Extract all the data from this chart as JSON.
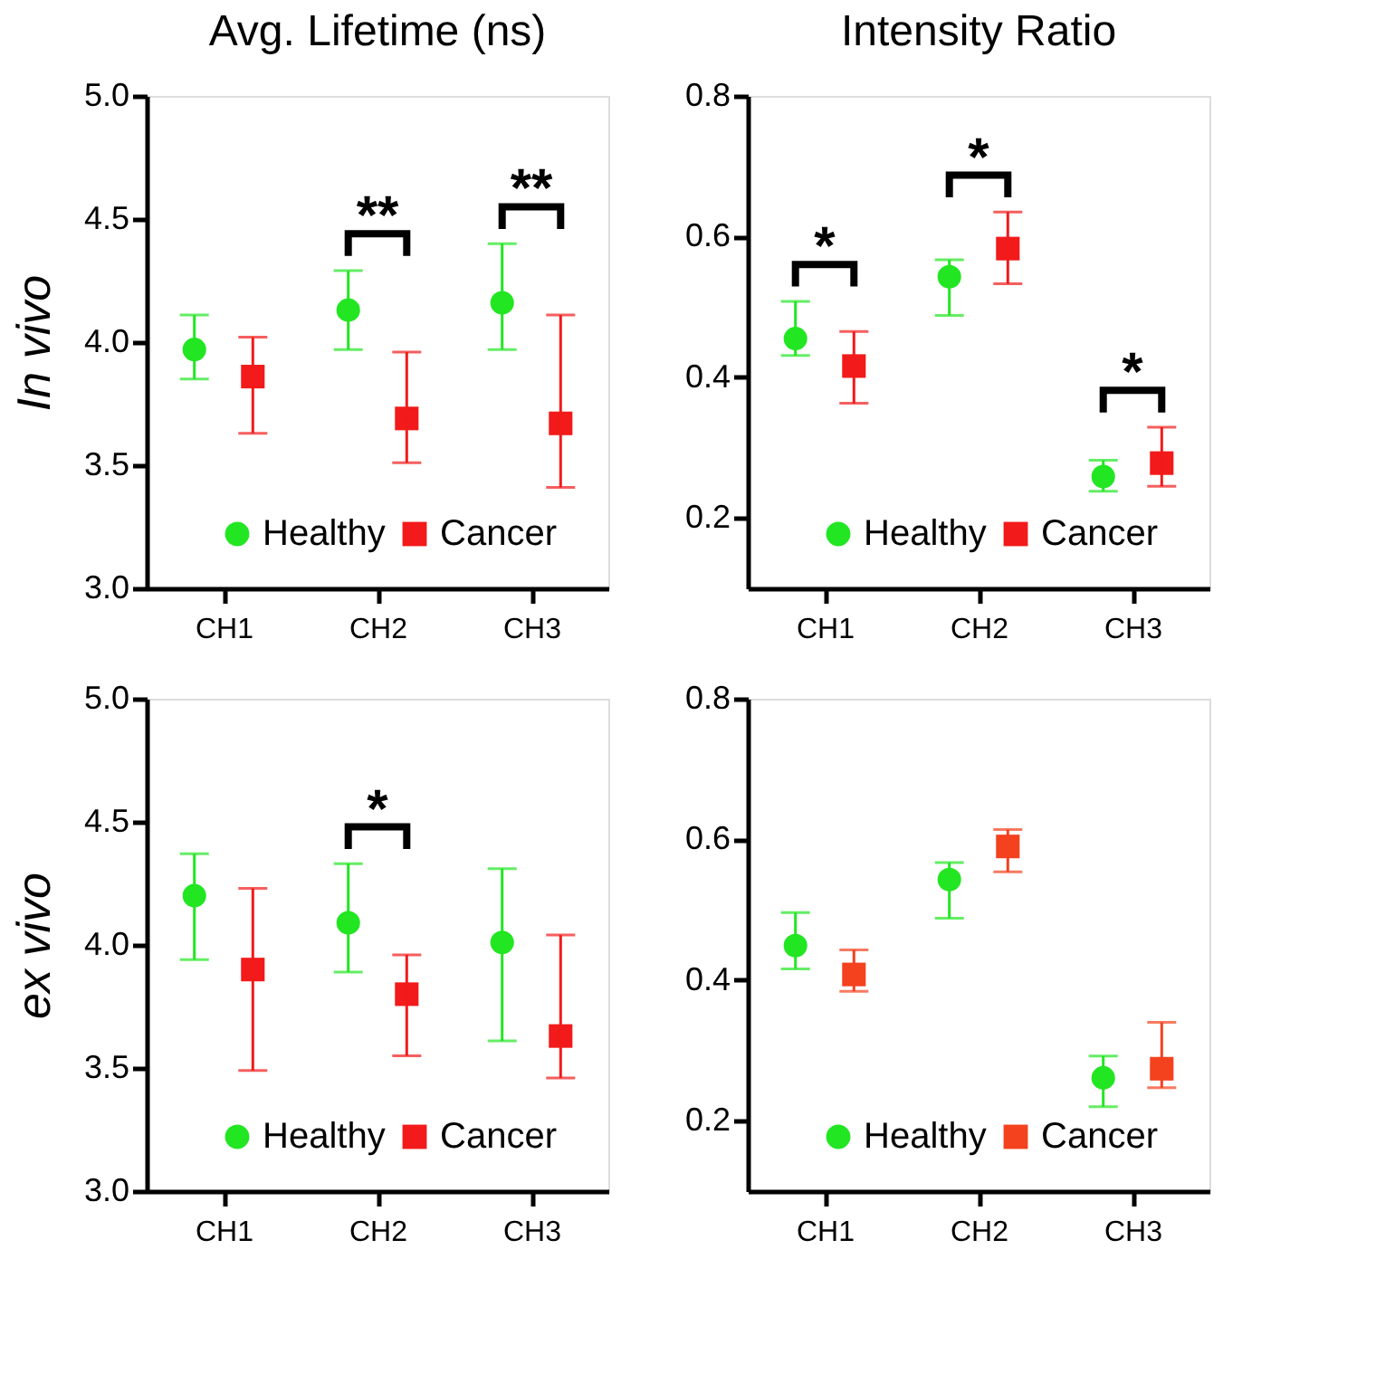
{
  "chart_data": [
    {
      "type": "scatter",
      "title": "Avg. Lifetime (ns)",
      "ylabel": "In vivo",
      "categories": [
        "CH1",
        "CH2",
        "CH3"
      ],
      "ylim": [
        3.0,
        5.0
      ],
      "yticks": [
        {
          "value": 3.0,
          "label": "3.0"
        },
        3.5,
        {
          "value": 4.0,
          "label": "4.0"
        },
        4.5,
        {
          "value": 5.0,
          "label": "5.0"
        }
      ],
      "grid": false,
      "legend": "bottom",
      "series": [
        {
          "name": "Healthy",
          "color": "#22e622",
          "marker": "circle",
          "values": [
            3.97,
            4.13,
            4.16
          ],
          "errors": [
            [
              3.85,
              4.11
            ],
            [
              3.97,
              4.29
            ],
            [
              3.97,
              4.4
            ]
          ]
        },
        {
          "name": "Cancer",
          "color": "#f21a1a",
          "marker": "square",
          "values": [
            3.86,
            3.69,
            3.67
          ],
          "errors": [
            [
              3.63,
              4.02
            ],
            [
              3.51,
              3.96
            ],
            [
              3.41,
              4.11
            ]
          ]
        }
      ],
      "annotations": [
        "**",
        "**"
      ]
    },
    {
      "type": "scatter",
      "title": "Intensity Ratio",
      "categories": [
        "CH1",
        "CH2",
        "CH3"
      ],
      "ylim": [
        0.1,
        0.8
      ],
      "yticks": [
        0.2,
        0.4,
        0.6,
        0.8
      ],
      "grid": false,
      "legend": "bottom",
      "series": [
        {
          "name": "Healthy",
          "color": "#22e622",
          "marker": "circle",
          "values": [
            0.455,
            0.543,
            0.259
          ],
          "errors": [
            [
              0.431,
              0.508
            ],
            [
              0.488,
              0.567
            ],
            [
              0.238,
              0.282
            ]
          ]
        },
        {
          "name": "Cancer",
          "color": "#f21a1a",
          "marker": "square",
          "values": [
            0.416,
            0.583,
            0.278
          ],
          "errors": [
            [
              0.363,
              0.465
            ],
            [
              0.533,
              0.635
            ],
            [
              0.245,
              0.329
            ]
          ]
        }
      ],
      "annotations": [
        "*",
        "*",
        "*"
      ]
    },
    {
      "type": "scatter",
      "ylabel": "ex vivo",
      "categories": [
        "CH1",
        "CH2",
        "CH3"
      ],
      "ylim": [
        3.0,
        5.0
      ],
      "yticks": [
        {
          "value": 3.0,
          "label": "3.0"
        },
        3.5,
        {
          "value": 4.0,
          "label": "4.0"
        },
        4.5,
        {
          "value": 5.0,
          "label": "5.0"
        }
      ],
      "grid": false,
      "legend": "bottom",
      "series": [
        {
          "name": "Healthy",
          "color": "#22e622",
          "marker": "circle",
          "values": [
            4.2,
            4.09,
            4.01
          ],
          "errors": [
            [
              3.94,
              4.37
            ],
            [
              3.89,
              4.33
            ],
            [
              3.61,
              4.31
            ]
          ]
        },
        {
          "name": "Cancer",
          "color": "#f21a1a",
          "marker": "square",
          "values": [
            3.9,
            3.8,
            3.63
          ],
          "errors": [
            [
              3.49,
              4.23
            ],
            [
              3.55,
              3.96
            ],
            [
              3.46,
              4.04
            ]
          ]
        }
      ],
      "annotations": [
        "*"
      ]
    },
    {
      "type": "scatter",
      "categories": [
        "CH1",
        "CH2",
        "CH3"
      ],
      "ylim": [
        0.1,
        0.8
      ],
      "yticks": [
        0.2,
        0.4,
        0.6,
        0.8
      ],
      "grid": false,
      "legend": "bottom",
      "series": [
        {
          "name": "Healthy",
          "color": "#22e622",
          "marker": "circle",
          "values": [
            0.449,
            0.543,
            0.261
          ],
          "errors": [
            [
              0.416,
              0.496
            ],
            [
              0.488,
              0.567
            ],
            [
              0.22,
              0.292
            ]
          ]
        },
        {
          "name": "Cancer",
          "color": "#f4411e",
          "marker": "square",
          "values": [
            0.408,
            0.59,
            0.274
          ],
          "errors": [
            [
              0.384,
              0.443
            ],
            [
              0.554,
              0.614
            ],
            [
              0.247,
              0.34
            ]
          ]
        }
      ]
    }
  ]
}
